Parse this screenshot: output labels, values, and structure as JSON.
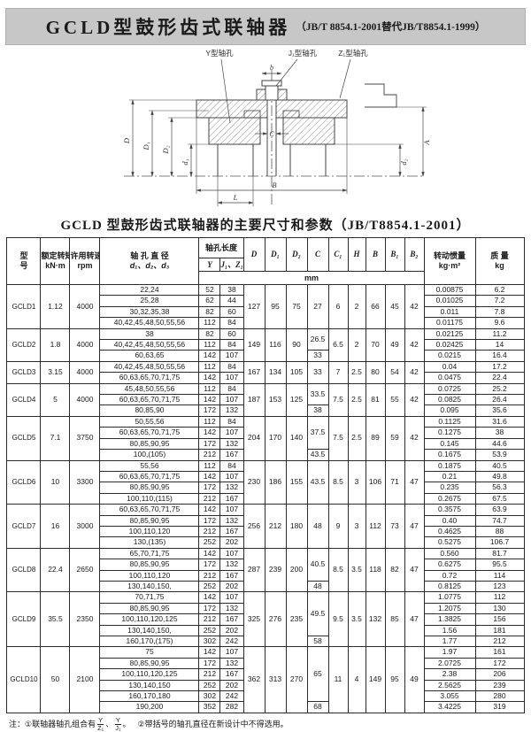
{
  "page": {
    "header_title": "GCLD型鼓形齿式联轴器",
    "header_sub": "（JB/T 8854.1-2001替代JB/T8854.1-1999）",
    "table_title": "GCLD 型鼓形齿式联轴器的主要尺寸和参数（JB/T8854.1-2001）"
  },
  "drawing": {
    "label_y_hole": "Y型轴孔",
    "label_j1_hole": "J₁型轴孔",
    "label_z1_hole": "Z₁型轴孔",
    "dim_D": "D",
    "dim_D1": "D₁",
    "dim_D2": "D₂",
    "dim_d1": "d₁",
    "dim_d2": "d₂",
    "dim_A": "A",
    "dim_B": "B",
    "dim_L": "L",
    "dim_C": "C",
    "dim_b": "b"
  },
  "table": {
    "headers": {
      "model_l1": "型",
      "model_l2": "号",
      "torque": "额定转矩",
      "torque_unit": "kN·m",
      "speed": "许用转速",
      "speed_unit": "rpm",
      "bore": "轴 孔 直 径",
      "bore_sub": "d₁、d₂、d₃",
      "length": "轴孔长度",
      "length_y": "Y",
      "length_jz": "J₁、Z₁",
      "mm": "mm",
      "d": "D",
      "d1": "D₁",
      "d2": "D₂",
      "c": "C",
      "c1": "C₁",
      "h": "H",
      "b": "B",
      "b1": "B₁",
      "b2": "B₂",
      "inertia": "转动惯量",
      "inertia_unit": "kg·m²",
      "mass": "质  量",
      "mass_unit": "kg"
    },
    "groups": [
      {
        "model": "GCLD1",
        "torque": "1.12",
        "speed": "4000",
        "D": "127",
        "D1": "95",
        "D2": "75",
        "C1": "6",
        "H": "2",
        "B": "66",
        "B1": "45",
        "B2": "42",
        "c_spans": [
          {
            "value": "27",
            "rows": 4
          }
        ],
        "rows": [
          {
            "bore": "22,24",
            "Y": "52",
            "JZ": "38",
            "inertia": "0.00875",
            "mass": "6.2"
          },
          {
            "bore": "25,28",
            "Y": "62",
            "JZ": "44",
            "inertia": "0.01025",
            "mass": "7.2"
          },
          {
            "bore": "30,32,35,38",
            "Y": "82",
            "JZ": "60",
            "inertia": "0.011",
            "mass": "7.8"
          },
          {
            "bore": "40,42,45,48,50,55,56",
            "Y": "112",
            "JZ": "84",
            "inertia": "0.01175",
            "mass": "9.6"
          }
        ]
      },
      {
        "model": "GCLD2",
        "torque": "1.8",
        "speed": "4000",
        "D": "149",
        "D1": "116",
        "D2": "90",
        "C1": "6.5",
        "H": "2",
        "B": "70",
        "B1": "49",
        "B2": "42",
        "c_spans": [
          {
            "value": "26.5",
            "rows": 2
          },
          {
            "value": "33",
            "rows": 1
          }
        ],
        "rows": [
          {
            "bore": "38",
            "Y": "82",
            "JZ": "60",
            "inertia": "0.02125",
            "mass": "11.2"
          },
          {
            "bore": "40,42,45,48,50,55,56",
            "Y": "112",
            "JZ": "84",
            "inertia": "0.02425",
            "mass": "14"
          },
          {
            "bore": "60,63,65",
            "Y": "142",
            "JZ": "107",
            "inertia": "0.0215",
            "mass": "16.4"
          }
        ]
      },
      {
        "model": "GCLD3",
        "torque": "3.15",
        "speed": "4000",
        "D": "167",
        "D1": "134",
        "D2": "105",
        "C1": "7",
        "H": "2.5",
        "B": "80",
        "B1": "54",
        "B2": "42",
        "c_spans": [
          {
            "value": "33",
            "rows": 2
          }
        ],
        "rows": [
          {
            "bore": "40,42,45,48,50,55,56",
            "Y": "112",
            "JZ": "84",
            "inertia": "0.04",
            "mass": "17.2"
          },
          {
            "bore": "60,63,65,70,71,75",
            "Y": "142",
            "JZ": "107",
            "inertia": "0.0475",
            "mass": "22.4"
          }
        ]
      },
      {
        "model": "GCLD4",
        "torque": "5",
        "speed": "4000",
        "D": "187",
        "D1": "153",
        "D2": "125",
        "C1": "7.5",
        "H": "2.5",
        "B": "81",
        "B1": "55",
        "B2": "42",
        "c_spans": [
          {
            "value": "33.5",
            "rows": 2
          },
          {
            "value": "38",
            "rows": 1
          }
        ],
        "rows": [
          {
            "bore": "45,48,50,55,56",
            "Y": "112",
            "JZ": "84",
            "inertia": "0.0725",
            "mass": "25.2"
          },
          {
            "bore": "60,63,65,70,71,75",
            "Y": "142",
            "JZ": "107",
            "inertia": "0.0825",
            "mass": "26.4"
          },
          {
            "bore": "80,85,90",
            "Y": "172",
            "JZ": "132",
            "inertia": "0.095",
            "mass": "35.6"
          }
        ]
      },
      {
        "model": "GCLD5",
        "torque": "7.1",
        "speed": "3750",
        "D": "204",
        "D1": "170",
        "D2": "140",
        "C1": "7.5",
        "H": "2.5",
        "B": "89",
        "B1": "59",
        "B2": "42",
        "c_spans": [
          {
            "value": "37.5",
            "rows": 3
          },
          {
            "value": "43.5",
            "rows": 1
          }
        ],
        "rows": [
          {
            "bore": "50,55,56",
            "Y": "112",
            "JZ": "84",
            "inertia": "0.1125",
            "mass": "31.6"
          },
          {
            "bore": "60,63,65,70,71,75",
            "Y": "142",
            "JZ": "107",
            "inertia": "0.1275",
            "mass": "38"
          },
          {
            "bore": "80,85,90,95",
            "Y": "172",
            "JZ": "132",
            "inertia": "0.145",
            "mass": "44.6"
          },
          {
            "bore": "100,(105)",
            "Y": "212",
            "JZ": "167",
            "inertia": "0.1675",
            "mass": "53.9"
          }
        ]
      },
      {
        "model": "GCLD6",
        "torque": "10",
        "speed": "3300",
        "D": "230",
        "D1": "186",
        "D2": "155",
        "C1": "8.5",
        "H": "3",
        "B": "106",
        "B1": "71",
        "B2": "47",
        "c_spans": [
          {
            "value": "43.5",
            "rows": 4
          }
        ],
        "rows": [
          {
            "bore": "55,56",
            "Y": "112",
            "JZ": "84",
            "inertia": "0.1875",
            "mass": "40.5"
          },
          {
            "bore": "60,63,65,70,71,75",
            "Y": "142",
            "JZ": "107",
            "inertia": "0.21",
            "mass": "49.8"
          },
          {
            "bore": "80,85,90,95",
            "Y": "172",
            "JZ": "132",
            "inertia": "0.235",
            "mass": "56.3"
          },
          {
            "bore": "100,110,(115)",
            "Y": "212",
            "JZ": "167",
            "inertia": "0.2675",
            "mass": "67.5"
          }
        ]
      },
      {
        "model": "GCLD7",
        "torque": "16",
        "speed": "3000",
        "D": "256",
        "D1": "212",
        "D2": "180",
        "C1": "9",
        "H": "3",
        "B": "112",
        "B1": "73",
        "B2": "47",
        "c_spans": [
          {
            "value": "48",
            "rows": 4
          }
        ],
        "rows": [
          {
            "bore": "60,63,65,70,71,75",
            "Y": "142",
            "JZ": "107",
            "inertia": "0.3575",
            "mass": "63.9"
          },
          {
            "bore": "80,85,90,95",
            "Y": "172",
            "JZ": "132",
            "inertia": "0.40",
            "mass": "74.7"
          },
          {
            "bore": "100,110,120",
            "Y": "212",
            "JZ": "167",
            "inertia": "0.4625",
            "mass": "88"
          },
          {
            "bore": "130,(135)",
            "Y": "252",
            "JZ": "202",
            "inertia": "0.5275",
            "mass": "106.7"
          }
        ]
      },
      {
        "model": "GCLD8",
        "torque": "22.4",
        "speed": "2650",
        "D": "287",
        "D1": "239",
        "D2": "200",
        "C1": "8.5",
        "H": "3.5",
        "B": "118",
        "B1": "82",
        "B2": "47",
        "c_spans": [
          {
            "value": "40.5",
            "rows": 3
          },
          {
            "value": "48",
            "rows": 1
          }
        ],
        "rows": [
          {
            "bore": "65,70,71,75",
            "Y": "142",
            "JZ": "107",
            "inertia": "0.560",
            "mass": "81.7"
          },
          {
            "bore": "80,85,90,95",
            "Y": "172",
            "JZ": "132",
            "inertia": "0.6275",
            "mass": "95.5"
          },
          {
            "bore": "100,110,120",
            "Y": "212",
            "JZ": "167",
            "inertia": "0.72",
            "mass": "114"
          },
          {
            "bore": "130,140,150,",
            "Y": "252",
            "JZ": "202",
            "inertia": "0.8125",
            "mass": "123"
          }
        ]
      },
      {
        "model": "GCLD9",
        "torque": "35.5",
        "speed": "2350",
        "D": "325",
        "D1": "276",
        "D2": "235",
        "C1": "9.5",
        "H": "3.5",
        "B": "132",
        "B1": "85",
        "B2": "47",
        "c_spans": [
          {
            "value": "49.5",
            "rows": 4
          },
          {
            "value": "58",
            "rows": 1
          }
        ],
        "rows": [
          {
            "bore": "70,71,75",
            "Y": "142",
            "JZ": "107",
            "inertia": "1.0775",
            "mass": "112"
          },
          {
            "bore": "80,85,90,95",
            "Y": "172",
            "JZ": "132",
            "inertia": "1.2075",
            "mass": "130"
          },
          {
            "bore": "100,110,120,125",
            "Y": "212",
            "JZ": "167",
            "inertia": "1.3825",
            "mass": "156"
          },
          {
            "bore": "130,140,150,",
            "Y": "252",
            "JZ": "202",
            "inertia": "1.56",
            "mass": "181"
          },
          {
            "bore": "160,170,(175)",
            "Y": "302",
            "JZ": "242",
            "inertia": "1.77",
            "mass": "212"
          }
        ]
      },
      {
        "model": "GCLD10",
        "torque": "50",
        "speed": "2100",
        "D": "362",
        "D1": "313",
        "D2": "270",
        "C1": "11",
        "H": "4",
        "B": "149",
        "B1": "95",
        "B2": "49",
        "c_spans": [
          {
            "value": "65",
            "rows": 5
          },
          {
            "value": "68",
            "rows": 1
          }
        ],
        "rows": [
          {
            "bore": "75",
            "Y": "142",
            "JZ": "107",
            "inertia": "1.97",
            "mass": "161"
          },
          {
            "bore": "80,85,90,95",
            "Y": "172",
            "JZ": "132",
            "inertia": "2.0725",
            "mass": "172"
          },
          {
            "bore": "100,110,120,125",
            "Y": "212",
            "JZ": "167",
            "inertia": "2.38",
            "mass": "206"
          },
          {
            "bore": "130,140,150",
            "Y": "252",
            "JZ": "202",
            "inertia": "2.5625",
            "mass": "239"
          },
          {
            "bore": "160,170,180",
            "Y": "302",
            "JZ": "242",
            "inertia": "3.055",
            "mass": "280"
          },
          {
            "bore": "190,200",
            "Y": "352",
            "JZ": "282",
            "inertia": "3.4225",
            "mass": "319"
          }
        ]
      }
    ]
  },
  "note": {
    "prefix": "注：①联轴器轴孔组合有",
    "frac1_num": "Y",
    "frac1_den": "Z₁",
    "sep": "、",
    "frac2_num": "Y",
    "frac2_den": "J₁",
    "mid": "。",
    "second": "②带括号的轴孔直径在新设计中不得选用。"
  }
}
